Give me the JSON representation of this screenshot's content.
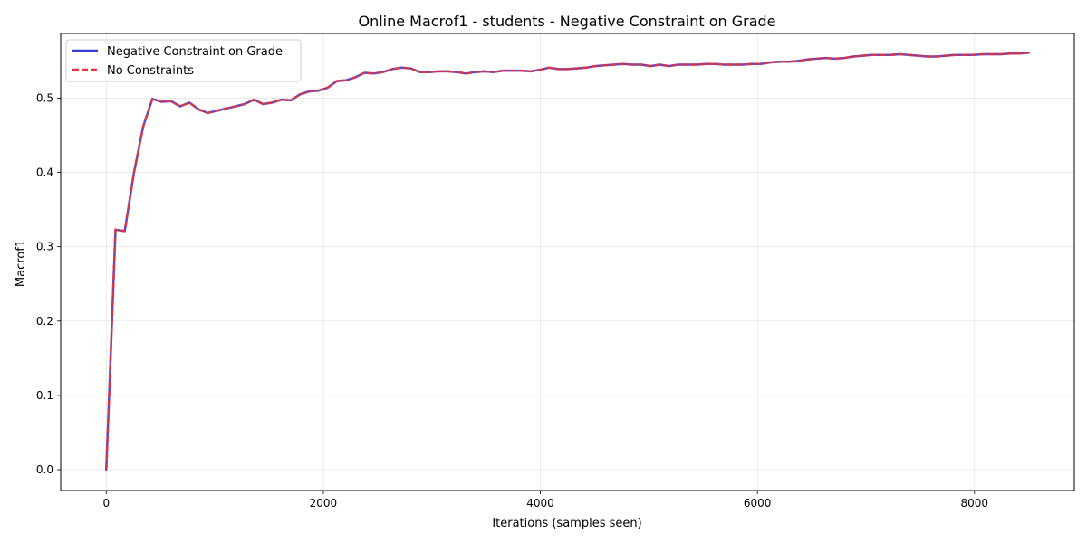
{
  "chart_data": {
    "type": "line",
    "title": "Online Macrof1 - students - Negative Constraint on Grade",
    "xlabel": "Iterations (samples seen)",
    "ylabel": "Macrof1",
    "xlim": [
      -420,
      8920
    ],
    "ylim": [
      -0.028,
      0.587
    ],
    "xticks": [
      0,
      2000,
      4000,
      6000,
      8000
    ],
    "xtick_labels": [
      "0",
      "2000",
      "4000",
      "6000",
      "8000"
    ],
    "yticks": [
      0.0,
      0.1,
      0.2,
      0.3,
      0.4,
      0.5
    ],
    "ytick_labels": [
      "0.0",
      "0.1",
      "0.2",
      "0.3",
      "0.4",
      "0.5"
    ],
    "grid": true,
    "legend_position": "top-left",
    "x": [
      0,
      85,
      170,
      255,
      340,
      425,
      510,
      595,
      680,
      765,
      850,
      935,
      1020,
      1105,
      1190,
      1275,
      1360,
      1445,
      1530,
      1615,
      1700,
      1785,
      1870,
      1955,
      2040,
      2125,
      2210,
      2295,
      2380,
      2465,
      2550,
      2635,
      2720,
      2805,
      2890,
      2975,
      3060,
      3145,
      3230,
      3315,
      3400,
      3485,
      3570,
      3655,
      3740,
      3825,
      3910,
      3995,
      4080,
      4165,
      4250,
      4335,
      4420,
      4505,
      4590,
      4675,
      4760,
      4845,
      4930,
      5015,
      5100,
      5185,
      5270,
      5355,
      5440,
      5525,
      5610,
      5695,
      5780,
      5865,
      5950,
      6035,
      6120,
      6205,
      6290,
      6375,
      6460,
      6545,
      6630,
      6715,
      6800,
      6885,
      6970,
      7055,
      7140,
      7225,
      7310,
      7395,
      7480,
      7565,
      7650,
      7735,
      7820,
      7905,
      7990,
      8075,
      8160,
      8245,
      8330,
      8415,
      8500
    ],
    "series": [
      {
        "name": "Negative Constraint on Grade",
        "color": "#3a3ad6",
        "style": "solid",
        "values": [
          0.0,
          0.323,
          0.321,
          0.4,
          0.462,
          0.499,
          0.495,
          0.496,
          0.489,
          0.494,
          0.485,
          0.48,
          0.483,
          0.486,
          0.489,
          0.492,
          0.498,
          0.492,
          0.494,
          0.498,
          0.497,
          0.505,
          0.509,
          0.51,
          0.514,
          0.523,
          0.524,
          0.528,
          0.534,
          0.533,
          0.535,
          0.539,
          0.541,
          0.54,
          0.535,
          0.535,
          0.536,
          0.536,
          0.535,
          0.533,
          0.535,
          0.536,
          0.535,
          0.537,
          0.537,
          0.537,
          0.536,
          0.538,
          0.541,
          0.539,
          0.539,
          0.54,
          0.541,
          0.543,
          0.544,
          0.545,
          0.546,
          0.545,
          0.545,
          0.543,
          0.545,
          0.543,
          0.545,
          0.545,
          0.545,
          0.546,
          0.546,
          0.545,
          0.545,
          0.545,
          0.546,
          0.546,
          0.548,
          0.549,
          0.549,
          0.55,
          0.552,
          0.553,
          0.554,
          0.553,
          0.554,
          0.556,
          0.557,
          0.558,
          0.558,
          0.558,
          0.559,
          0.558,
          0.557,
          0.556,
          0.556,
          0.557,
          0.558,
          0.558,
          0.558,
          0.559,
          0.559,
          0.559,
          0.56,
          0.56,
          0.561
        ]
      },
      {
        "name": "No Constraints",
        "color": "#e8333b",
        "style": "dashed",
        "values": [
          0.0,
          0.323,
          0.321,
          0.4,
          0.462,
          0.499,
          0.495,
          0.496,
          0.489,
          0.494,
          0.485,
          0.48,
          0.483,
          0.486,
          0.489,
          0.492,
          0.498,
          0.492,
          0.494,
          0.498,
          0.497,
          0.505,
          0.509,
          0.51,
          0.514,
          0.523,
          0.524,
          0.528,
          0.534,
          0.533,
          0.535,
          0.539,
          0.541,
          0.54,
          0.535,
          0.535,
          0.536,
          0.536,
          0.535,
          0.533,
          0.535,
          0.536,
          0.535,
          0.537,
          0.537,
          0.537,
          0.536,
          0.538,
          0.541,
          0.539,
          0.539,
          0.54,
          0.541,
          0.543,
          0.544,
          0.545,
          0.546,
          0.545,
          0.545,
          0.543,
          0.545,
          0.543,
          0.545,
          0.545,
          0.545,
          0.546,
          0.546,
          0.545,
          0.545,
          0.545,
          0.546,
          0.546,
          0.548,
          0.549,
          0.549,
          0.55,
          0.552,
          0.553,
          0.554,
          0.553,
          0.554,
          0.556,
          0.557,
          0.558,
          0.558,
          0.558,
          0.559,
          0.558,
          0.557,
          0.556,
          0.556,
          0.557,
          0.558,
          0.558,
          0.558,
          0.559,
          0.559,
          0.559,
          0.56,
          0.56,
          0.561
        ]
      }
    ]
  }
}
